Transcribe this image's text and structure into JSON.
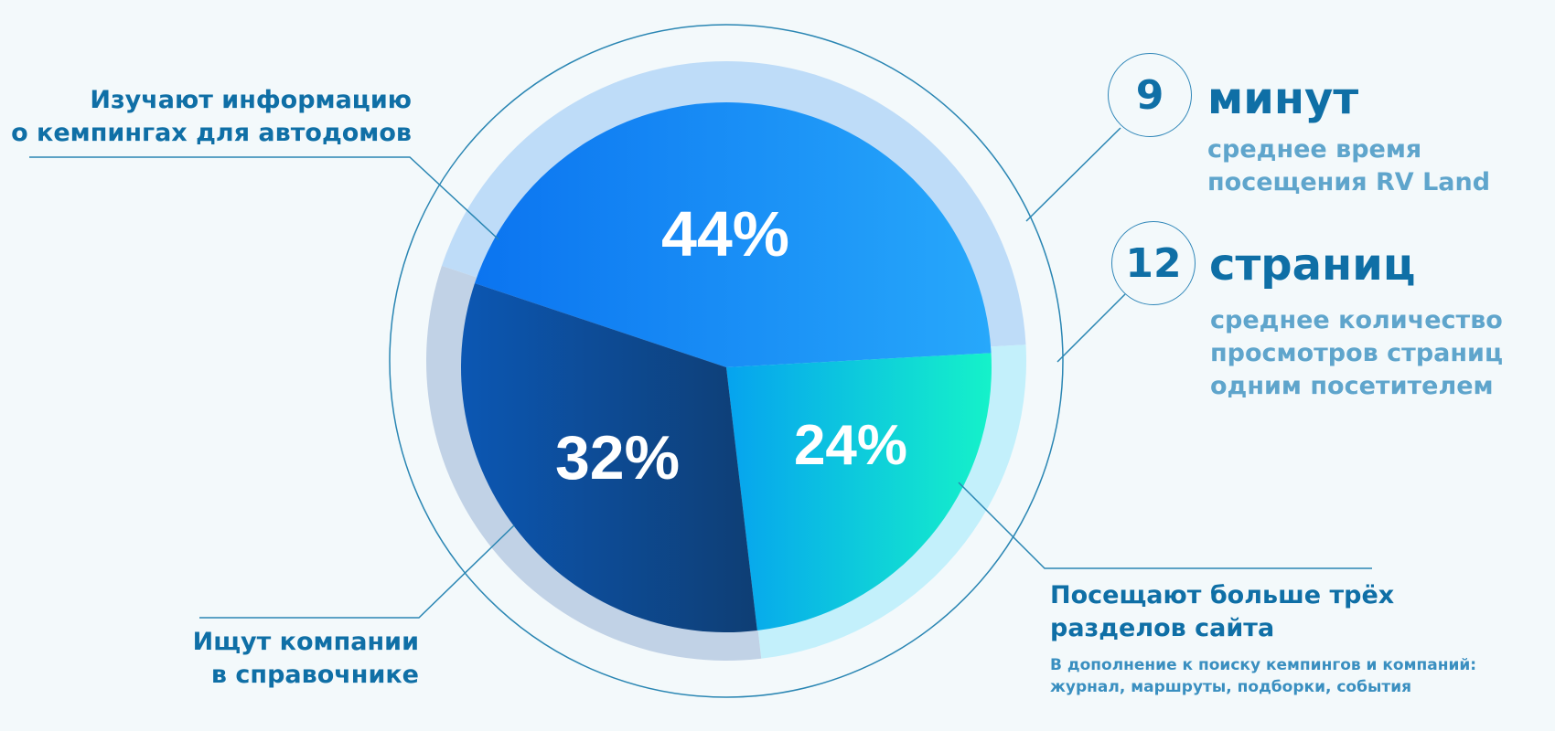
{
  "chart_data": {
    "type": "pie",
    "slices": [
      {
        "label": "Изучают информацию о кемпингах для автодомов",
        "value": 44,
        "display": "44%"
      },
      {
        "label": "Посещают больше трёх разделов сайта",
        "value": 24,
        "display": "24%"
      },
      {
        "label": "Ищут компании в справочнике",
        "value": 32,
        "display": "32%"
      }
    ]
  },
  "labels": {
    "info_line1": "Изучают информацию",
    "info_line2": "о кемпингах для автодомов",
    "companies_line1": "Ищут компании",
    "companies_line2": "в справочнике",
    "sections_line1": "Посещают больше трёх",
    "sections_line2": "разделов сайта",
    "sections_note_line1": "В дополнение к поиску кемпингов и компаний:",
    "sections_note_line2": "журнал, маршруты, подборки, события"
  },
  "stats": {
    "minutes": {
      "number": "9",
      "word": "минут",
      "desc_line1": "среднее время",
      "desc_line2": "посещения RV Land"
    },
    "pages": {
      "number": "12",
      "word": "страниц",
      "desc_line1": "среднее количество",
      "desc_line2": "просмотров страниц",
      "desc_line3": "одним посетителем"
    }
  },
  "colors": {
    "blue_slice": [
      "#0b74f0",
      "#27a8fb"
    ],
    "cyan_slice": [
      "#06a3ef",
      "#15f2c9"
    ],
    "navy_slice": [
      "#0c57b3",
      "#0e3e74"
    ],
    "label_text": "#0f6fa6",
    "desc_text": "#5fa5cc",
    "background": "#f3f9fb"
  }
}
